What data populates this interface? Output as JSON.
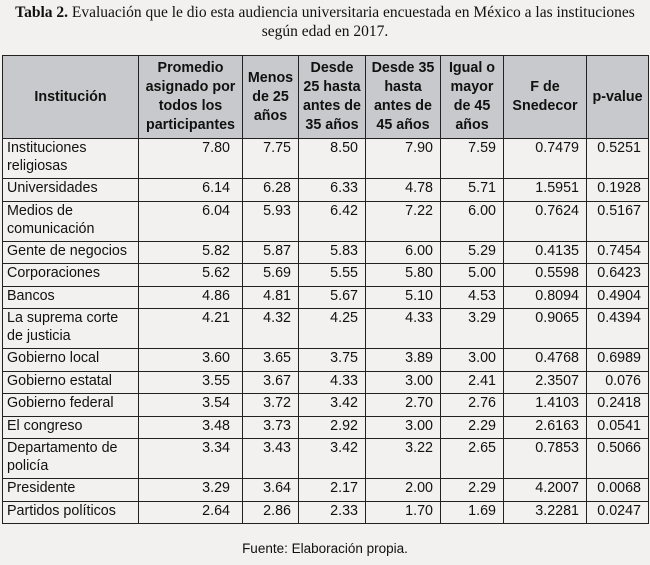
{
  "caption": {
    "label": "Tabla 2.",
    "text": " Evaluación que le dio esta audiencia universitaria encuestada en México a las instituciones según edad en 2017."
  },
  "headers": [
    "Institución",
    "Promedio asignado por todos los participantes",
    "Menos de 25 años",
    "Desde 25 hasta antes de 35 años",
    "Desde 35 hasta antes de 45 años",
    "Igual o mayor de 45 años",
    "F de Snedecor",
    "p-value"
  ],
  "rows": [
    [
      "Instituciones religiosas",
      "7.80",
      "7.75",
      "8.50",
      "7.90",
      "7.59",
      "0.7479",
      "0.5251"
    ],
    [
      "Universidades",
      "6.14",
      "6.28",
      "6.33",
      "4.78",
      "5.71",
      "1.5951",
      "0.1928"
    ],
    [
      "Medios de comunicación",
      "6.04",
      "5.93",
      "6.42",
      "7.22",
      "6.00",
      "0.7624",
      "0.5167"
    ],
    [
      "Gente de negocios",
      "5.82",
      "5.87",
      "5.83",
      "6.00",
      "5.29",
      "0.4135",
      "0.7454"
    ],
    [
      "Corporaciones",
      "5.62",
      "5.69",
      "5.55",
      "5.80",
      "5.00",
      "0.5598",
      "0.6423"
    ],
    [
      "Bancos",
      "4.86",
      "4.81",
      "5.67",
      "5.10",
      "4.53",
      "0.8094",
      "0.4904"
    ],
    [
      "La suprema corte de justicia",
      "4.21",
      "4.32",
      "4.25",
      "4.33",
      "3.29",
      "0.9065",
      "0.4394"
    ],
    [
      "Gobierno local",
      "3.60",
      "3.65",
      "3.75",
      "3.89",
      "3.00",
      "0.4768",
      "0.6989"
    ],
    [
      "Gobierno estatal",
      "3.55",
      "3.67",
      "4.33",
      "3.00",
      "2.41",
      "2.3507",
      "0.076"
    ],
    [
      "Gobierno federal",
      "3.54",
      "3.72",
      "3.42",
      "2.70",
      "2.76",
      "1.4103",
      "0.2418"
    ],
    [
      "El congreso",
      "3.48",
      "3.73",
      "2.92",
      "3.00",
      "2.29",
      "2.6163",
      "0.0541"
    ],
    [
      "Departamento de policía",
      "3.34",
      "3.43",
      "3.42",
      "3.22",
      "2.65",
      "0.7853",
      "0.5066"
    ],
    [
      "Presidente",
      "3.29",
      "3.64",
      "2.17",
      "2.00",
      "2.29",
      "4.2007",
      "0.0068"
    ],
    [
      "Partidos políticos",
      "2.64",
      "2.86",
      "2.33",
      "1.70",
      "1.69",
      "3.2281",
      "0.0247"
    ]
  ],
  "source": "Fuente: Elaboración propia."
}
